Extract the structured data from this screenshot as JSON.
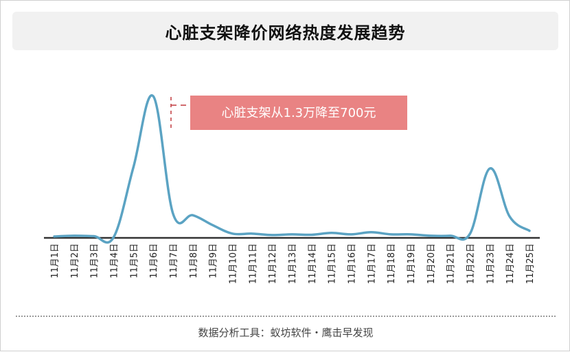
{
  "header": {
    "title": "心脏支架降价网络热度发展趋势"
  },
  "footer": {
    "source": "数据分析工具：蚁坊软件・鹰击早发现"
  },
  "chart_data": {
    "type": "line",
    "title": "心脏支架降价网络热度发展趋势",
    "categories": [
      "11月1日",
      "11月2日",
      "11月3日",
      "11月4日",
      "11月5日",
      "11月6日",
      "11月7日",
      "11月8日",
      "11月9日",
      "11月10日",
      "11月11日",
      "11月12日",
      "11月13日",
      "11月14日",
      "11月15日",
      "11月16日",
      "11月17日",
      "11月18日",
      "11月19日",
      "11月20日",
      "11月21日",
      "11月22日",
      "11月23日",
      "11月24日",
      "11月25日"
    ],
    "values": [
      1,
      1.5,
      1.2,
      0.5,
      50,
      100,
      17,
      16,
      9,
      3,
      3,
      2,
      2.5,
      2.2,
      3.5,
      2.5,
      4,
      2.5,
      2.5,
      1.5,
      1.5,
      3,
      49,
      15,
      5
    ],
    "ylim": [
      0,
      100
    ],
    "grid": false,
    "legend": "none",
    "line_color": "#5ba3c3",
    "axis_color": "#333333",
    "annotation": {
      "text": "心脏支架从1.3万降至700元",
      "category": "11月6日",
      "box_color": "#e98383",
      "text_color": "#ffffff",
      "marker_color": "#c0393d"
    }
  }
}
